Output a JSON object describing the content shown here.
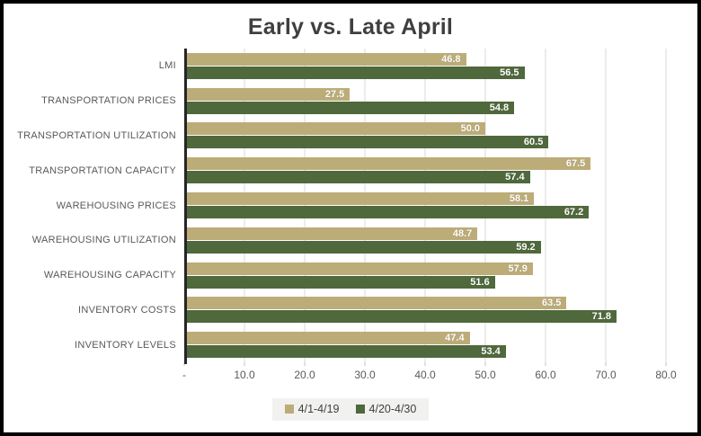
{
  "title": "Early vs. Late April",
  "chart_data": {
    "type": "bar",
    "orientation": "horizontal",
    "title": "Early vs. Late April",
    "categories": [
      "LMI",
      "TRANSPORTATION PRICES",
      "TRANSPORTATION UTILIZATION",
      "TRANSPORTATION CAPACITY",
      "WAREHOUSING PRICES",
      "WAREHOUSING UTILIZATION",
      "WAREHOUSING CAPACITY",
      "INVENTORY COSTS",
      "INVENTORY LEVELS"
    ],
    "series": [
      {
        "name": "4/1-4/19",
        "color": "#bcac78",
        "values": [
          46.8,
          27.5,
          50.0,
          67.5,
          58.1,
          48.7,
          57.9,
          63.5,
          47.4
        ]
      },
      {
        "name": "4/20-4/30",
        "color": "#4f683c",
        "values": [
          56.5,
          54.8,
          60.5,
          57.4,
          67.2,
          59.2,
          51.6,
          71.8,
          53.4
        ]
      }
    ],
    "xlim": [
      0,
      80
    ],
    "x_ticks": [
      "-",
      "10.0",
      "20.0",
      "30.0",
      "40.0",
      "50.0",
      "60.0",
      "70.0",
      "80.0"
    ],
    "grid": true,
    "value_labels": true,
    "legend_position": "bottom",
    "colors": {
      "gridline": "#d9d9d9",
      "axis_line": "#262626",
      "title_text": "#3f3f3f",
      "label_text": "#595959",
      "value_text": "#ffffff",
      "legend_bg": "#f1f1ef",
      "frame_border": "#000000"
    }
  }
}
